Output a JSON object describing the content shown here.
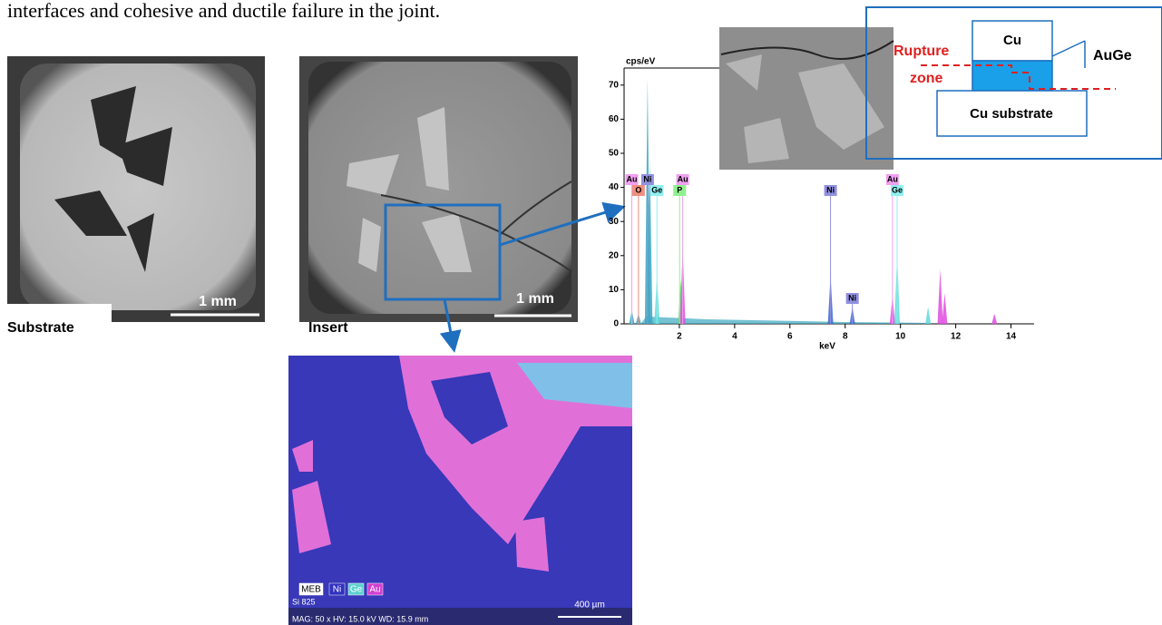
{
  "intro_text": "interfaces and cohesive and ductile failure in the joint.",
  "panels": {
    "substrate": {
      "label": "Substrate",
      "scale": "1 mm"
    },
    "insert": {
      "label": "Insert",
      "scale": "1 mm"
    }
  },
  "spectrum": {
    "y_label": "cps/eV",
    "x_label": "keV",
    "xlim": [
      0,
      15
    ],
    "ylim": [
      0,
      75
    ],
    "xticks": [
      2,
      4,
      6,
      8,
      10,
      12,
      14
    ],
    "yticks": [
      0,
      10,
      20,
      30,
      40,
      50,
      60,
      70
    ],
    "peaks": {
      "kev": [
        0.28,
        0.52,
        0.85,
        0.93,
        1.19,
        2.05,
        2.12,
        7.47,
        8.26,
        9.71,
        9.88,
        11.0,
        11.44,
        11.6,
        13.4
      ],
      "cps": [
        4,
        3,
        72,
        48,
        14,
        13,
        22,
        14,
        5,
        8,
        20,
        5,
        16,
        9,
        3
      ],
      "color": [
        "#3aa8c0",
        "#3aa8c0",
        "#3aa8c0",
        "#3aa8c0",
        "#5fd8d8",
        "#5fd860",
        "#e04ce0",
        "#3a6ad0",
        "#3a6ad0",
        "#e04ce0",
        "#5fd8d8",
        "#5fd8d8",
        "#e04ce0",
        "#e04ce0",
        "#e04ce0"
      ]
    },
    "element_lines": [
      {
        "label": "Au",
        "kev": 0.28,
        "color": "#f0a0f0"
      },
      {
        "label": "O",
        "kev": 0.52,
        "color": "#f09080"
      },
      {
        "label": "Ni",
        "kev": 0.85,
        "color": "#9090e0"
      },
      {
        "label": "Ge",
        "kev": 1.19,
        "color": "#90f0f0"
      },
      {
        "label": "Au",
        "kev": 2.12,
        "color": "#f0a0f0"
      },
      {
        "label": "P",
        "kev": 2.01,
        "color": "#90f090"
      },
      {
        "label": "Ni",
        "kev": 7.47,
        "color": "#9090e0"
      },
      {
        "label": "Ni",
        "kev": 8.26,
        "color": "#9090e0"
      },
      {
        "label": "Au",
        "kev": 9.71,
        "color": "#f0a0f0"
      },
      {
        "label": "Ge",
        "kev": 9.88,
        "color": "#90f0f0"
      }
    ]
  },
  "schematic": {
    "top": "Cu",
    "joint": "AuGe",
    "rupture_1": "Rupture",
    "rupture_2": "zone",
    "base": "Cu substrate"
  },
  "eds_map": {
    "legend": [
      "MEB",
      "Ni",
      "Ge",
      "Au"
    ],
    "info_1": "Si 825",
    "info_2": "MAG: 50 x  HV: 15.0 kV  WD: 15.9 mm",
    "scale": "400 µm"
  }
}
